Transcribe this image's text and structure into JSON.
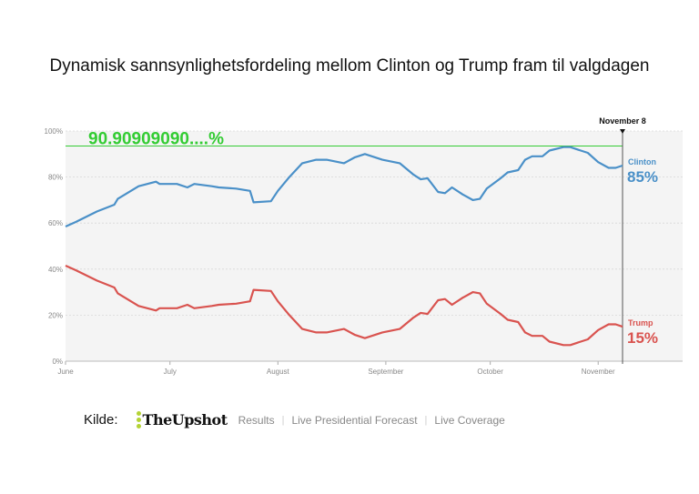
{
  "title": "Dynamisk sannsynlighetsfordeling mellom Clinton og Trump fram til valgdagen",
  "chart_data": {
    "type": "line",
    "title": "Dynamisk sannsynlighetsfordeling mellom Clinton og Trump fram til valgdagen",
    "xlabel": "",
    "ylabel": "",
    "x_start_date": "June 1",
    "x_tick_labels": [
      "June",
      "July",
      "August",
      "September",
      "October",
      "November"
    ],
    "y_tick_labels": [
      "0%",
      "20%",
      "40%",
      "60%",
      "80%",
      "100%"
    ],
    "ylim": [
      0,
      100
    ],
    "grid": true,
    "marker_label": "November 8",
    "reference_line": {
      "value": 93.5,
      "label": "90.90909090....%",
      "color": "#33cc33"
    },
    "x_days": [
      0,
      3,
      9,
      14,
      15,
      21,
      26,
      27,
      32,
      35,
      37,
      42,
      44,
      49,
      53,
      54,
      59,
      61,
      64,
      68,
      72,
      75,
      80,
      83,
      86,
      91,
      96,
      100,
      102,
      104,
      107,
      109,
      111,
      114,
      117,
      119,
      121,
      125,
      127,
      130,
      132,
      134,
      137,
      139,
      143,
      145,
      148,
      150,
      153,
      156,
      158,
      160
    ],
    "series": [
      {
        "name": "Clinton",
        "final_label": "85%",
        "color": "#4a90c8",
        "values": [
          58.5,
          60.5,
          65,
          68,
          70.5,
          76,
          78,
          77,
          77,
          75.5,
          77,
          76,
          75.5,
          75,
          74,
          69,
          69.5,
          74,
          79.5,
          86,
          87.5,
          87.5,
          86,
          88.5,
          90,
          87.5,
          86,
          81,
          79,
          79.5,
          73.5,
          73,
          75.5,
          72.5,
          70,
          70.5,
          75,
          79.5,
          82,
          83,
          87.5,
          89,
          89,
          91.5,
          93,
          93,
          91.5,
          90.5,
          86.5,
          84,
          84,
          85
        ]
      },
      {
        "name": "Trump",
        "final_label": "15%",
        "color": "#d9534f",
        "values": [
          41.5,
          39.5,
          35,
          32,
          29.5,
          24,
          22,
          23,
          23,
          24.5,
          23,
          24,
          24.5,
          25,
          26,
          31,
          30.5,
          26,
          20.5,
          14,
          12.5,
          12.5,
          14,
          11.5,
          10,
          12.5,
          14,
          19,
          21,
          20.5,
          26.5,
          27,
          24.5,
          27.5,
          30,
          29.5,
          25,
          20.5,
          18,
          17,
          12.5,
          11,
          11,
          8.5,
          7,
          7,
          8.5,
          9.5,
          13.5,
          16,
          16,
          15
        ]
      }
    ]
  },
  "footer": {
    "source_label": "Kilde:",
    "logo": "TheUpshot",
    "links": [
      "Results",
      "Live Presidential Forecast",
      "Live Coverage"
    ]
  }
}
